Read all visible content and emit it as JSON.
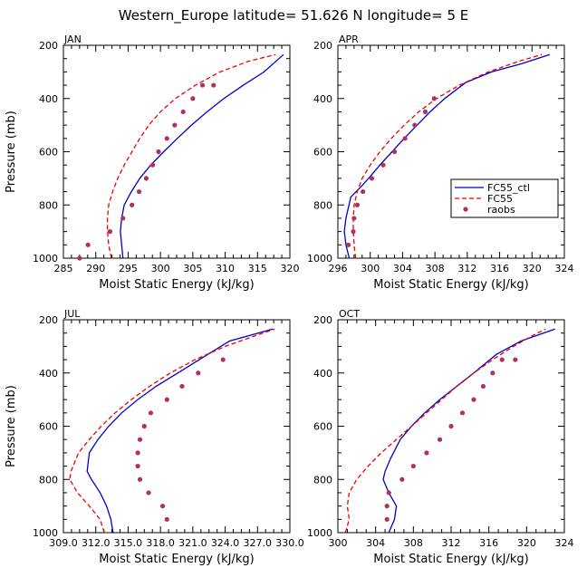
{
  "figure": {
    "title": "Western_Europe  latitude= 51.626 N longitude= 5 E"
  },
  "chart_data": [
    {
      "type": "line",
      "panel": "JAN",
      "xlabel": "Moist Static Energy (kJ/kg)",
      "ylabel": "Pressure (mb)",
      "xlim": [
        285,
        320
      ],
      "xticks": [
        285,
        290,
        295,
        300,
        305,
        310,
        315,
        320
      ],
      "xtick_labels": [
        "285",
        "290",
        "295",
        "300",
        "305",
        "310",
        "315",
        "320"
      ],
      "ylim": [
        200,
        1000
      ],
      "yticks": [
        200,
        400,
        600,
        800,
        1000
      ],
      "ytick_labels": [
        "200",
        "400",
        "600",
        "800",
        "1000"
      ],
      "series": [
        {
          "name": "FC55_ctl",
          "style": "solid",
          "color": "#0000cc",
          "x": [
            294.2,
            294.0,
            293.8,
            294.0,
            294.4,
            295.5,
            296.8,
            298.5,
            300.5,
            302.6,
            304.8,
            307.2,
            309.8,
            312.8,
            316.0,
            319.0
          ],
          "p": [
            1000,
            950,
            900,
            850,
            800,
            750,
            700,
            650,
            600,
            550,
            500,
            450,
            400,
            350,
            300,
            235
          ]
        },
        {
          "name": "FC55",
          "style": "dashed",
          "color": "#ee0000",
          "x": [
            292.4,
            292.0,
            291.8,
            291.8,
            292.0,
            292.6,
            293.4,
            294.4,
            295.6,
            296.8,
            298.2,
            300.0,
            302.3,
            305.4,
            309.2,
            313.6,
            317.8
          ],
          "p": [
            1000,
            950,
            900,
            850,
            800,
            750,
            700,
            650,
            600,
            550,
            500,
            450,
            400,
            350,
            300,
            260,
            235
          ]
        },
        {
          "name": "raobs",
          "style": "dots",
          "color": "#b03060",
          "x": [
            287.5,
            288.8,
            292.2,
            294.2,
            295.6,
            296.7,
            297.8,
            298.8,
            299.7,
            301.0,
            302.2,
            303.5,
            305.0,
            306.5,
            308.2
          ],
          "p": [
            1000,
            950,
            900,
            850,
            800,
            750,
            700,
            650,
            600,
            550,
            500,
            450,
            400,
            350,
            350
          ]
        }
      ]
    },
    {
      "type": "line",
      "panel": "APR",
      "xlabel": "Moist Static Energy (kJ/kg)",
      "ylabel": "",
      "xlim": [
        296,
        324
      ],
      "xticks": [
        296,
        300,
        304,
        308,
        312,
        316,
        320,
        324
      ],
      "xtick_labels": [
        "296",
        "300",
        "304",
        "308",
        "312",
        "316",
        "320",
        "324"
      ],
      "ylim": [
        200,
        1000
      ],
      "yticks": [
        200,
        400,
        600,
        800,
        1000
      ],
      "ytick_labels": [
        "200",
        "400",
        "600",
        "800",
        "1000"
      ],
      "legend": {
        "position": "center-right",
        "entries": [
          "FC55_ctl",
          "FC55",
          "raobs"
        ]
      },
      "series": [
        {
          "name": "FC55_ctl",
          "style": "solid",
          "color": "#0000cc",
          "x": [
            297.4,
            297.0,
            296.8,
            297.0,
            297.6,
            298.6,
            299.8,
            301.2,
            302.7,
            304.2,
            305.8,
            307.4,
            309.2,
            311.8,
            315.0,
            318.6,
            322.2
          ],
          "p": [
            1000,
            950,
            900,
            850,
            770,
            740,
            700,
            650,
            600,
            550,
            500,
            450,
            400,
            340,
            300,
            270,
            235
          ]
        },
        {
          "name": "FC55",
          "style": "dashed",
          "color": "#ee0000",
          "x": [
            298.2,
            298.0,
            297.9,
            297.9,
            298.0,
            298.4,
            299.0,
            300.0,
            301.2,
            302.6,
            304.2,
            306.0,
            308.2,
            311.0,
            314.6,
            318.4,
            321.2
          ],
          "p": [
            1000,
            950,
            900,
            850,
            800,
            750,
            700,
            650,
            600,
            550,
            500,
            450,
            400,
            350,
            300,
            260,
            235
          ]
        },
        {
          "name": "raobs",
          "style": "dots",
          "color": "#b03060",
          "x": [
            297.3,
            297.9,
            298.0,
            298.4,
            299.1,
            300.2,
            301.6,
            303.0,
            304.3,
            305.5,
            306.8,
            307.9
          ],
          "p": [
            950,
            900,
            850,
            800,
            750,
            700,
            650,
            600,
            550,
            500,
            450,
            400
          ]
        }
      ]
    },
    {
      "type": "line",
      "panel": "JUL",
      "xlabel": "Moist Static Energy (kJ/kg)",
      "ylabel": "Pressure (mb)",
      "xlim": [
        309.0,
        330.0
      ],
      "xticks": [
        309.0,
        312.0,
        315.0,
        318.0,
        321.0,
        324.0,
        327.0,
        330.0
      ],
      "xtick_labels": [
        "309.0",
        "312.0",
        "315.0",
        "318.0",
        "321.0",
        "324.0",
        "327.0",
        "330.0"
      ],
      "ylim": [
        200,
        1000
      ],
      "yticks": [
        200,
        400,
        600,
        800,
        1000
      ],
      "ytick_labels": [
        "200",
        "400",
        "600",
        "800",
        "1000"
      ],
      "series": [
        {
          "name": "FC55_ctl",
          "style": "solid",
          "color": "#0000cc",
          "x": [
            313.6,
            313.4,
            313.0,
            312.4,
            311.6,
            311.2,
            311.4,
            312.2,
            313.2,
            314.4,
            315.9,
            317.6,
            319.6,
            322.0,
            324.4,
            328.4
          ],
          "p": [
            1000,
            950,
            900,
            850,
            800,
            770,
            700,
            650,
            600,
            550,
            500,
            450,
            400,
            340,
            280,
            235
          ]
        },
        {
          "name": "FC55",
          "style": "dashed",
          "color": "#ee0000",
          "x": [
            312.8,
            312.4,
            311.4,
            310.3,
            309.6,
            309.7,
            310.4,
            311.4,
            312.5,
            313.8,
            315.3,
            317.0,
            318.9,
            321.2,
            324.0,
            326.8,
            328.6
          ],
          "p": [
            1000,
            950,
            900,
            850,
            800,
            770,
            700,
            650,
            600,
            550,
            500,
            450,
            400,
            350,
            300,
            260,
            235
          ]
        },
        {
          "name": "raobs",
          "style": "dots",
          "color": "#b03060",
          "x": [
            318.6,
            318.2,
            316.9,
            316.1,
            315.9,
            315.9,
            316.1,
            316.5,
            317.1,
            318.6,
            320.0,
            321.5,
            323.8
          ],
          "p": [
            950,
            900,
            850,
            800,
            750,
            700,
            650,
            600,
            550,
            500,
            450,
            400,
            350
          ]
        }
      ]
    },
    {
      "type": "line",
      "panel": "OCT",
      "xlabel": "Moist Static Energy (kJ/kg)",
      "ylabel": "",
      "xlim": [
        300,
        324
      ],
      "xticks": [
        300,
        304,
        308,
        312,
        316,
        320,
        324
      ],
      "xtick_labels": [
        "300",
        "304",
        "308",
        "312",
        "316",
        "320",
        "324"
      ],
      "ylim": [
        200,
        1000
      ],
      "yticks": [
        200,
        400,
        600,
        800,
        1000
      ],
      "ytick_labels": [
        "200",
        "400",
        "600",
        "800",
        "1000"
      ],
      "series": [
        {
          "name": "FC55_ctl",
          "style": "solid",
          "color": "#0000cc",
          "x": [
            305.4,
            306.0,
            306.2,
            305.4,
            304.8,
            305.0,
            305.6,
            306.6,
            307.8,
            309.2,
            310.8,
            312.6,
            314.4,
            316.8,
            319.4,
            323.0
          ],
          "p": [
            1000,
            950,
            900,
            850,
            800,
            770,
            720,
            650,
            600,
            550,
            500,
            450,
            400,
            330,
            280,
            235
          ]
        },
        {
          "name": "FC55",
          "style": "dashed",
          "color": "#ee0000",
          "x": [
            300.8,
            301.2,
            301.0,
            301.2,
            302.0,
            303.2,
            304.6,
            306.2,
            307.8,
            309.4,
            311.0,
            312.6,
            314.4,
            316.4,
            318.6,
            320.6,
            322.0
          ],
          "p": [
            1000,
            950,
            900,
            850,
            800,
            750,
            700,
            650,
            600,
            550,
            500,
            450,
            400,
            350,
            300,
            260,
            235
          ]
        },
        {
          "name": "raobs",
          "style": "dots",
          "color": "#b03060",
          "x": [
            305.2,
            305.2,
            305.4,
            306.8,
            308.0,
            309.4,
            310.8,
            312.0,
            313.2,
            314.4,
            315.4,
            316.4,
            317.4,
            318.8
          ],
          "p": [
            950,
            900,
            850,
            800,
            750,
            700,
            650,
            600,
            550,
            500,
            450,
            400,
            350,
            350
          ]
        }
      ]
    }
  ]
}
